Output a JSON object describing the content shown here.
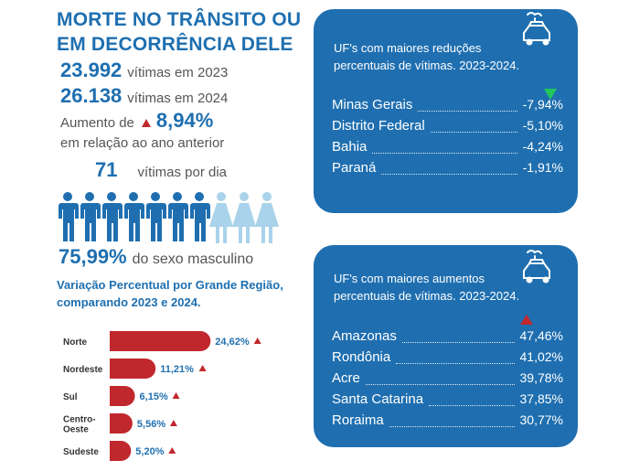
{
  "header": {
    "line1": "MORTE NO TRÂNSITO OU",
    "line2": "EM DECORRÊNCIA DELE"
  },
  "stats": {
    "victims_2023": {
      "value": "23.992",
      "label": "vítimas em 2023"
    },
    "victims_2024": {
      "value": "26.138",
      "label": "vítimas em 2024"
    },
    "increase": {
      "prefix": "Aumento de",
      "value": "8,94%",
      "suffix": "em relação ao ano anterior"
    },
    "per_day": {
      "value": "71",
      "label": "vítimas por dia"
    },
    "male": {
      "value": "75,99%",
      "label": "do sexo masculino"
    }
  },
  "people_icons": {
    "male_count": 7,
    "female_count": 3,
    "male_color": "#1f6fb0",
    "female_color": "#a9d3ea"
  },
  "region_title": "Variação Percentual por Grande Região, comparando 2023 e 2024.",
  "chart_data": {
    "type": "bar",
    "orientation": "horizontal",
    "title": "Variação Percentual por Grande Região, comparando 2023 e 2024.",
    "categories": [
      "Norte",
      "Nordeste",
      "Sul",
      "Centro-Oeste",
      "Sudeste"
    ],
    "category_labels": [
      [
        "Norte"
      ],
      [
        "Nordeste"
      ],
      [
        "Sul"
      ],
      [
        "Centro-",
        "Oeste"
      ],
      [
        "Sudeste"
      ]
    ],
    "values": [
      24.62,
      11.21,
      6.15,
      5.56,
      5.2
    ],
    "value_labels": [
      "24,62%",
      "11,21%",
      "6,15%",
      "5,56%",
      "5,20%"
    ],
    "bar_color": "#c0282d",
    "xlim": [
      0,
      25
    ]
  },
  "reductions": {
    "title_line1": "UF's com maiores reduções",
    "title_line2": "percentuais de vítimas. 2023-2024.",
    "rows": [
      {
        "state": "Minas Gerais",
        "value": "-7,94%"
      },
      {
        "state": "Distrito Federal",
        "value": "-5,10%"
      },
      {
        "state": "Bahia",
        "value": "-4,24%"
      },
      {
        "state": "Paraná",
        "value": "-1,91%"
      }
    ]
  },
  "increases": {
    "title_line1": "UF's com maiores aumentos",
    "title_line2": "percentuais de vítimas. 2023-2024.",
    "rows": [
      {
        "state": "Amazonas",
        "value": "47,46%"
      },
      {
        "state": "Rondônia",
        "value": "41,02%"
      },
      {
        "state": "Acre",
        "value": "39,78%"
      },
      {
        "state": "Santa Catarina",
        "value": "37,85%"
      },
      {
        "state": "Roraima",
        "value": "30,77%"
      }
    ]
  },
  "colors": {
    "brand_blue": "#1f6fb0",
    "alert_red": "#c0282d",
    "down_green": "#22c55e"
  }
}
